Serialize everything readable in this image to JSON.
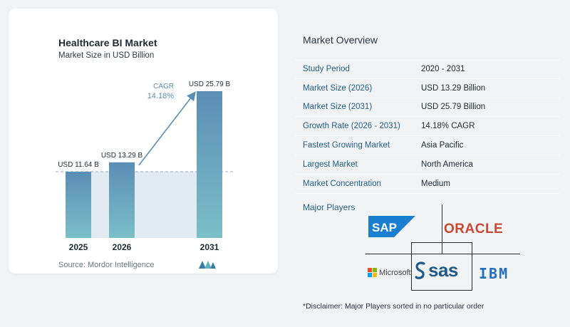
{
  "chart_data": {
    "type": "bar",
    "title": "Healthcare BI Market",
    "subtitle": "Market Size in USD Billion",
    "categories": [
      "2025",
      "2026",
      "2031"
    ],
    "values": [
      11.64,
      13.29,
      25.79
    ],
    "data_labels": [
      "USD 11.64 B",
      "USD 13.29 B",
      "USD 25.79 B"
    ],
    "annotation": {
      "label": "CAGR",
      "value": "14.18%"
    },
    "source": "Source:  Mordor Intelligence",
    "colors": {
      "bar_top": "#5b8db5",
      "bar_bottom": "#7bbfc8",
      "arrow": "#5b8db5",
      "baseline_fill": "#e3ebf2",
      "cagr_text": "#5b8db5"
    }
  },
  "overview": {
    "title": "Market Overview",
    "rows": [
      {
        "label": "Study Period",
        "value": "2020 - 2031"
      },
      {
        "label": "Market Size (2026)",
        "value": "USD 13.29 Billion"
      },
      {
        "label": "Market Size (2031)",
        "value": "USD 25.79 Billion"
      },
      {
        "label": "Growth Rate (2026 - 2031)",
        "value": "14.18% CAGR"
      },
      {
        "label": "Fastest Growing Market",
        "value": "Asia Pacific"
      },
      {
        "label": "Largest Market",
        "value": "North America"
      },
      {
        "label": "Market Concentration",
        "value": "Medium"
      }
    ]
  },
  "players": {
    "title": "Major Players",
    "logos": {
      "sap": "SAP",
      "oracle": "ORACLE",
      "microsoft": "Microsoft",
      "sas": "sas",
      "ibm": "IBM"
    }
  },
  "disclaimer": "*Disclaimer: Major Players sorted in no particular order"
}
